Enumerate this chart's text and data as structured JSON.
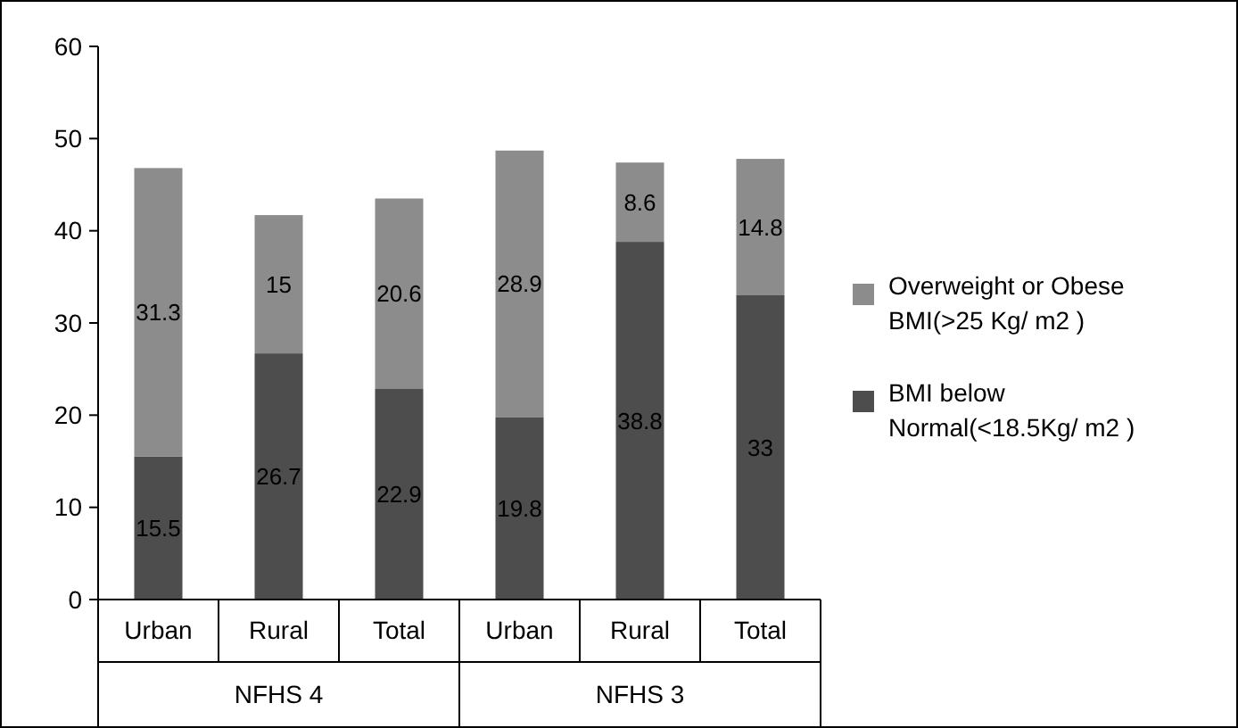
{
  "chart_data": {
    "type": "bar",
    "stacked": true,
    "categories": [
      "Urban",
      "Rural",
      "Total",
      "Urban",
      "Rural",
      "Total"
    ],
    "series": [
      {
        "name": "BMI below Normal(<18.5Kg/ m2 )",
        "color": "#4d4d4d",
        "values": [
          15.5,
          26.7,
          22.9,
          19.8,
          38.8,
          33
        ]
      },
      {
        "name": "Overweight or Obese BMI(>25 Kg/ m2 )",
        "color": "#8c8c8c",
        "values": [
          31.3,
          15,
          20.6,
          28.9,
          8.6,
          14.8
        ]
      }
    ],
    "annotations": [
      "NFHS 4",
      "NFHS 3"
    ],
    "ylim": [
      0,
      60
    ],
    "yticks": [
      0,
      10,
      20,
      30,
      40,
      50,
      60
    ],
    "data_labels": true,
    "legend": "right"
  }
}
